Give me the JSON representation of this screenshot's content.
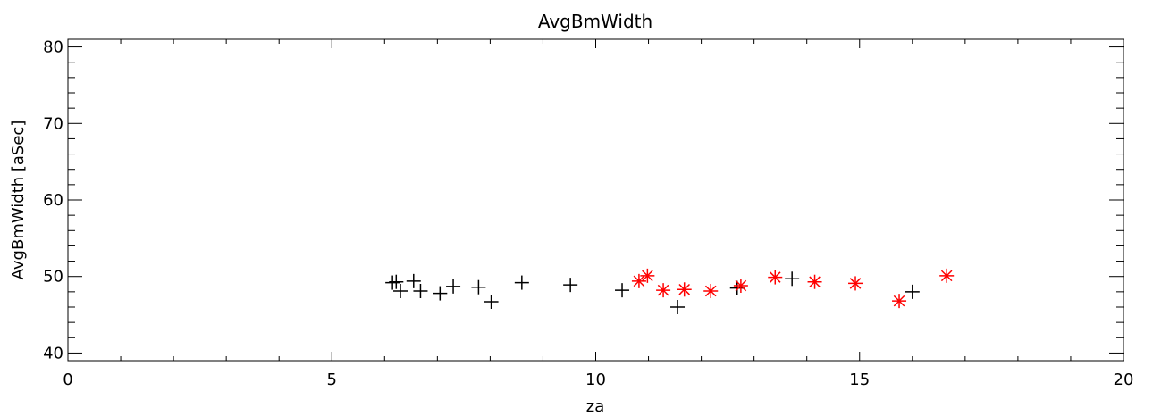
{
  "chart_data": {
    "type": "scatter",
    "title": "AvgBmWidth",
    "xlabel": "za",
    "ylabel": "AvgBmWidth [aSec]",
    "xlim": [
      0,
      20
    ],
    "ylim": [
      39,
      81
    ],
    "x_ticks": [
      "0",
      "5",
      "10",
      "15",
      "20"
    ],
    "y_ticks": [
      "40",
      "50",
      "60",
      "70",
      "80"
    ],
    "grid": false,
    "series": [
      {
        "marker": "plus",
        "color": "#000000",
        "points": [
          {
            "x": 6.15,
            "y": 49.2
          },
          {
            "x": 6.22,
            "y": 49.3
          },
          {
            "x": 6.3,
            "y": 48.1
          },
          {
            "x": 6.55,
            "y": 49.4
          },
          {
            "x": 6.68,
            "y": 48.1
          },
          {
            "x": 7.05,
            "y": 47.8
          },
          {
            "x": 7.3,
            "y": 48.7
          },
          {
            "x": 7.78,
            "y": 48.6
          },
          {
            "x": 8.02,
            "y": 46.7
          },
          {
            "x": 8.6,
            "y": 49.2
          },
          {
            "x": 9.52,
            "y": 48.9
          },
          {
            "x": 10.5,
            "y": 48.2
          },
          {
            "x": 11.55,
            "y": 46.0
          },
          {
            "x": 12.68,
            "y": 48.5
          },
          {
            "x": 13.72,
            "y": 49.7
          },
          {
            "x": 16.0,
            "y": 48.0
          }
        ]
      },
      {
        "marker": "asterisk",
        "color": "#ff0000",
        "points": [
          {
            "x": 10.82,
            "y": 49.4
          },
          {
            "x": 10.98,
            "y": 50.1
          },
          {
            "x": 11.28,
            "y": 48.2
          },
          {
            "x": 11.68,
            "y": 48.3
          },
          {
            "x": 12.18,
            "y": 48.1
          },
          {
            "x": 12.75,
            "y": 48.8
          },
          {
            "x": 13.4,
            "y": 49.9
          },
          {
            "x": 14.15,
            "y": 49.3
          },
          {
            "x": 14.92,
            "y": 49.1
          },
          {
            "x": 15.75,
            "y": 46.8
          },
          {
            "x": 16.65,
            "y": 50.1
          }
        ]
      }
    ]
  }
}
